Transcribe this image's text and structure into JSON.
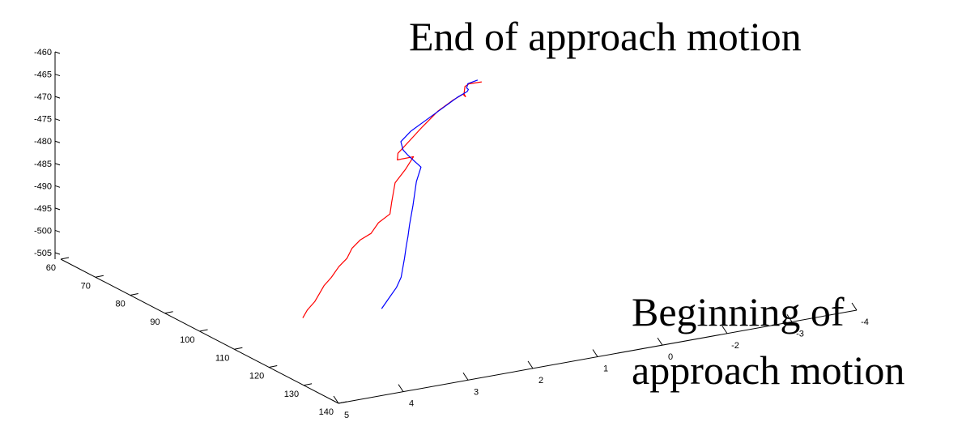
{
  "chart_data": {
    "type": "line",
    "projection": "3d",
    "title": "",
    "xlabel": "",
    "ylabel": "",
    "zlabel": "",
    "grid": false,
    "x_ticks": [
      "5",
      "4",
      "3",
      "2",
      "1",
      "0",
      "-2",
      "-3",
      "-4"
    ],
    "y_ticks": [
      "60",
      "70",
      "80",
      "90",
      "100",
      "110",
      "120",
      "130",
      "140"
    ],
    "z_ticks": [
      "-460",
      "-465",
      "-470",
      "-475",
      "-480",
      "-485",
      "-490",
      "-495",
      "-500",
      "-505"
    ],
    "x_range": [
      -4,
      5
    ],
    "y_range": [
      60,
      140
    ],
    "z_range": [
      -505,
      -460
    ],
    "annotations": [
      {
        "text": "End of approach motion",
        "name": "annotation-end-of-approach"
      },
      {
        "text": "Beginning of",
        "name": "annotation-beginning-line-1"
      },
      {
        "text": "approach motion",
        "name": "annotation-beginning-line-2"
      }
    ],
    "series": [
      {
        "color": "#ff0000",
        "points": [
          [
            0.1,
            100,
            -460.5
          ],
          [
            0.2,
            98,
            -461.5
          ],
          [
            0.15,
            96,
            -463
          ],
          [
            0.05,
            94,
            -466
          ],
          [
            -0.1,
            92,
            -467.5
          ],
          [
            -0.2,
            90,
            -468
          ],
          [
            -0.3,
            88,
            -469
          ],
          [
            -0.25,
            86,
            -471
          ],
          [
            -0.1,
            84,
            -474
          ],
          [
            0.05,
            82,
            -478
          ],
          [
            0.2,
            81,
            -481
          ],
          [
            0.35,
            80,
            -484
          ],
          [
            0.3,
            79,
            -486
          ],
          [
            0.15,
            78,
            -486.5
          ],
          [
            -0.1,
            77,
            -487
          ],
          [
            0.1,
            78,
            -489
          ],
          [
            0.4,
            80,
            -490.5
          ],
          [
            0.55,
            82,
            -491.5
          ],
          [
            0.7,
            84,
            -492.5
          ],
          [
            0.85,
            86,
            -494
          ],
          [
            1.05,
            86,
            -495.5
          ],
          [
            1.3,
            88,
            -496.5
          ],
          [
            1.55,
            89,
            -497
          ],
          [
            1.75,
            90,
            -498
          ],
          [
            1.9,
            91,
            -499.5
          ],
          [
            2.1,
            92,
            -500.5
          ],
          [
            2.35,
            94,
            -501.5
          ],
          [
            2.6,
            96,
            -502
          ],
          [
            2.8,
            98,
            -502.5
          ],
          [
            3.0,
            100,
            -503
          ],
          [
            3.25,
            102,
            -503.5
          ],
          [
            3.45,
            104,
            -504
          ]
        ]
      },
      {
        "color": "#0000ff",
        "points": [
          [
            0.05,
            98,
            -461
          ],
          [
            0.1,
            96,
            -462.5
          ],
          [
            0.0,
            94,
            -464.5
          ],
          [
            -0.15,
            92,
            -466
          ],
          [
            -0.25,
            90,
            -467.5
          ],
          [
            -0.2,
            88,
            -469.5
          ],
          [
            -0.05,
            86,
            -472.5
          ],
          [
            0.1,
            84,
            -475.5
          ],
          [
            0.25,
            82,
            -478.5
          ],
          [
            0.3,
            80,
            -481.5
          ],
          [
            0.2,
            79,
            -484
          ],
          [
            0.05,
            78,
            -486
          ],
          [
            -0.05,
            80,
            -488
          ],
          [
            0.15,
            82,
            -490
          ],
          [
            0.3,
            84,
            -491.5
          ],
          [
            0.45,
            86,
            -493
          ],
          [
            0.6,
            88,
            -494
          ],
          [
            0.75,
            90,
            -495
          ],
          [
            0.9,
            92,
            -496.5
          ],
          [
            1.05,
            94,
            -497.5
          ],
          [
            1.2,
            96,
            -499
          ],
          [
            1.35,
            98,
            -500
          ],
          [
            1.5,
            100,
            -501
          ],
          [
            1.7,
            102,
            -502
          ],
          [
            1.95,
            104,
            -503
          ],
          [
            2.2,
            106,
            -504
          ]
        ]
      }
    ]
  }
}
